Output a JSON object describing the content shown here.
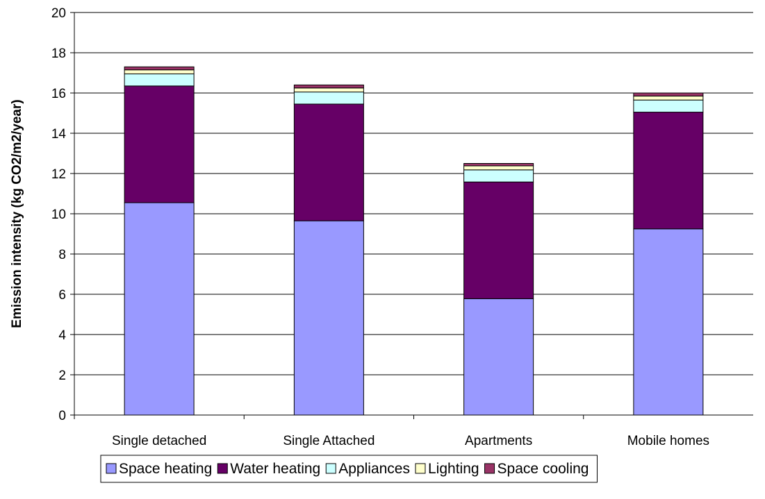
{
  "chart_data": {
    "type": "bar",
    "stacked": true,
    "ylabel": "Emission intensity (kg CO2/m2/year)",
    "xlabel": "",
    "ylim": [
      0,
      20
    ],
    "yticks": [
      "0",
      "2",
      "4",
      "6",
      "8",
      "10",
      "12",
      "14",
      "16",
      "18",
      "20"
    ],
    "grid": true,
    "legend_position": "bottom",
    "categories": [
      "Single detached",
      "Single Attached",
      "Apartments",
      "Mobile homes"
    ],
    "series": [
      {
        "name": "Space heating",
        "color": "#9999ff",
        "values": [
          10.55,
          9.65,
          5.78,
          9.25
        ]
      },
      {
        "name": "Water heating",
        "color": "#660066",
        "values": [
          5.8,
          5.8,
          5.8,
          5.8
        ]
      },
      {
        "name": "Appliances",
        "color": "#ccffff",
        "values": [
          0.6,
          0.6,
          0.6,
          0.6
        ]
      },
      {
        "name": "Lighting",
        "color": "#ffffcc",
        "values": [
          0.2,
          0.2,
          0.2,
          0.2
        ]
      },
      {
        "name": "Space cooling",
        "color": "#993366",
        "values": [
          0.15,
          0.15,
          0.12,
          0.15
        ]
      }
    ]
  }
}
